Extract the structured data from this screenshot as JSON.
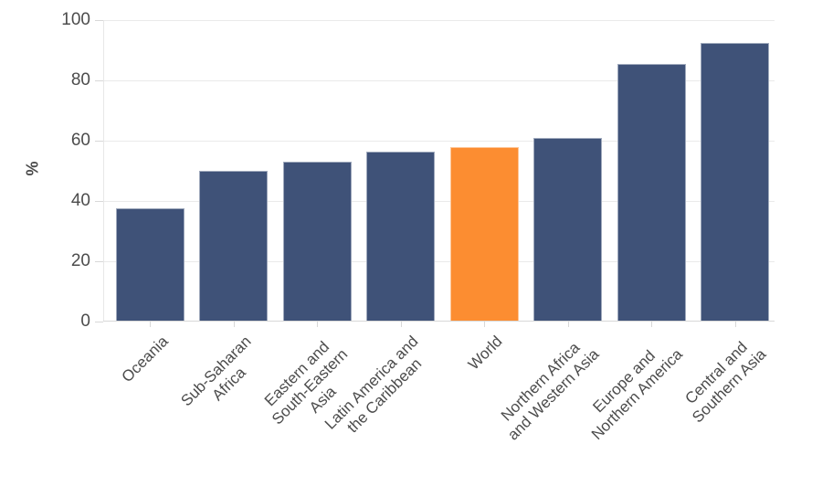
{
  "chart_data": {
    "type": "bar",
    "title": "",
    "xlabel": "",
    "ylabel": "%",
    "ylim": [
      0,
      100
    ],
    "yticks": [
      0,
      20,
      40,
      60,
      80,
      100
    ],
    "grid": true,
    "legend": false,
    "categories": [
      "Oceania",
      "Sub-Saharan Africa",
      "Eastern and South-Eastern Asia",
      "Latin America and the Caribbean",
      "World",
      "Northern Africa and Western Asia",
      "Europe and Northern America",
      "Central and Southern Asia"
    ],
    "tick_label_lines": [
      [
        "Oceania"
      ],
      [
        "Sub-Saharan",
        "Africa"
      ],
      [
        "Eastern and",
        "South-Eastern",
        "Asia"
      ],
      [
        "Latin America and",
        "the Caribbean"
      ],
      [
        "World"
      ],
      [
        "Northern Africa",
        "and Western Asia"
      ],
      [
        "Europe and",
        "Northern America"
      ],
      [
        "Central and",
        "Southern Asia"
      ]
    ],
    "values": [
      37.5,
      50,
      53,
      56.5,
      58,
      61,
      85.5,
      92.5
    ],
    "bar_color": "#3f5278",
    "highlight_category": "World",
    "highlight_color": "#fc8d31",
    "gridline_color": "#eaeaea",
    "axis_color": "#d8d8d8",
    "text_color": "#4c4c4c"
  }
}
